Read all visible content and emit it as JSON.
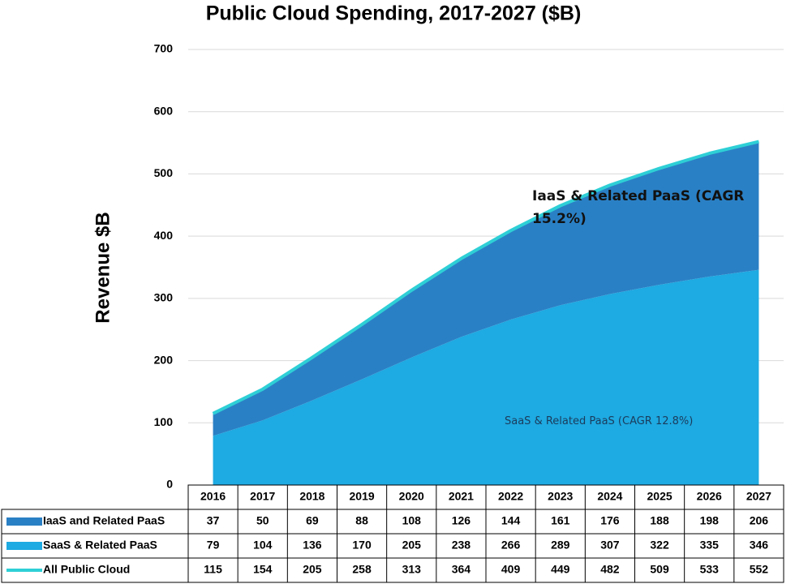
{
  "chart_data": {
    "type": "area",
    "stacked": true,
    "title": "Public Cloud Spending, 2017-2027 ($B)",
    "ylabel": "Revenue $B",
    "categories": [
      "2016",
      "2017",
      "2018",
      "2019",
      "2020",
      "2021",
      "2022",
      "2023",
      "2024",
      "2025",
      "2026",
      "2027"
    ],
    "series": [
      {
        "name": "SaaS & Related PaaS",
        "color": "#1eaae2",
        "values": [
          79,
          104,
          136,
          170,
          205,
          238,
          266,
          289,
          307,
          322,
          335,
          346
        ]
      },
      {
        "name": "IaaS and Related PaaS",
        "color": "#2a80c5",
        "values": [
          37,
          50,
          69,
          88,
          108,
          126,
          144,
          161,
          176,
          188,
          198,
          206
        ]
      },
      {
        "name": "All Public Cloud",
        "color": "#2ecfd6",
        "type": "line",
        "values": [
          115,
          154,
          205,
          258,
          313,
          364,
          409,
          449,
          482,
          509,
          533,
          552
        ]
      }
    ],
    "ylim": [
      0,
      700
    ],
    "yticks": [
      0,
      100,
      200,
      300,
      400,
      500,
      600,
      700
    ],
    "grid": true,
    "data_table": true,
    "annotations": [
      "IaaS & Related PaaS (CAGR 15.2%)",
      "SaaS & Related PaaS (CAGR 12.8%)"
    ]
  }
}
